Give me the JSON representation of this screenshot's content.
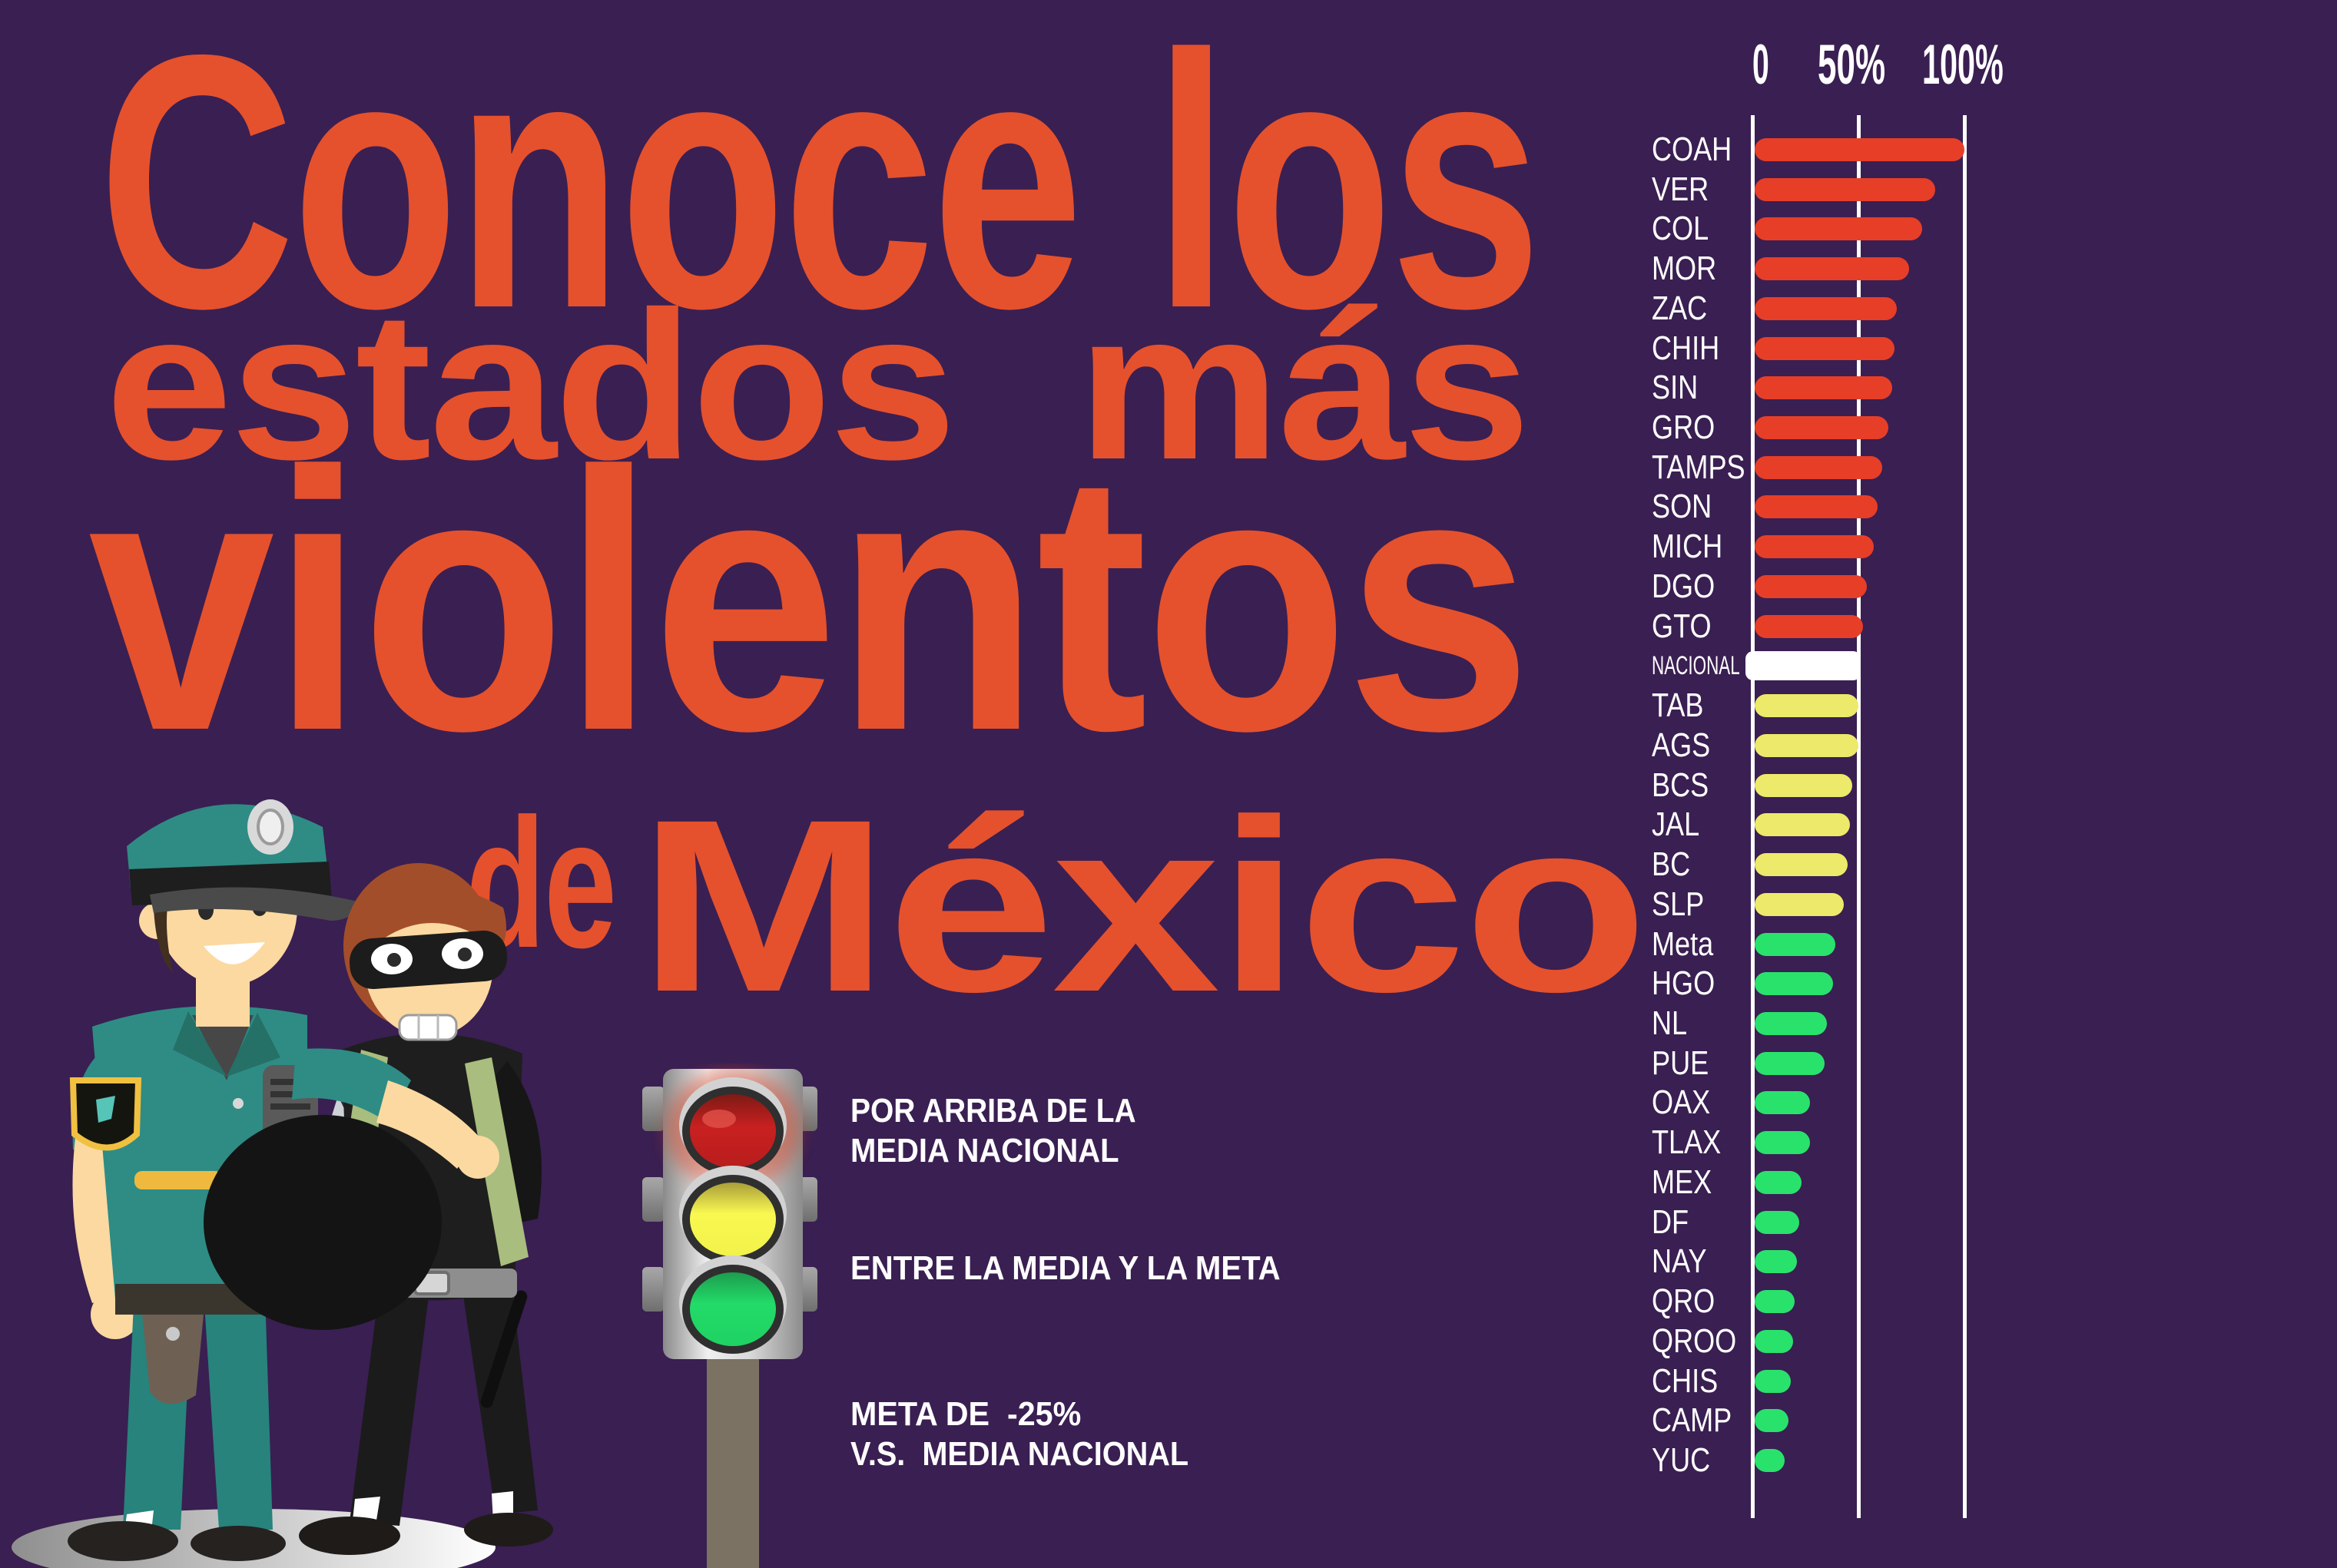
{
  "colors": {
    "background": "#3A1F52",
    "title": "#E5512C",
    "bar_red": "#E73E28",
    "bar_yellow": "#EDE96A",
    "bar_green": "#29E26C",
    "bar_white": "#FFFFFF",
    "text": "#FFFFFF",
    "traffic_red": "#C92020",
    "traffic_yellow": "#F8F851",
    "traffic_green": "#22DB68",
    "pole": "#7B7264"
  },
  "title": {
    "line1": "Conoce los",
    "line2": "estados  más",
    "line3": "violentos",
    "line4_small": "de",
    "line4_large": "México"
  },
  "legend": {
    "items": [
      {
        "light": "red",
        "lines": [
          "POR ARRIBA DE LA",
          "MEDIA NACIONAL"
        ]
      },
      {
        "light": "yellow",
        "lines": [
          "ENTRE LA MEDIA Y LA META"
        ]
      },
      {
        "light": "green",
        "lines": [
          "META DE  -25%",
          "V.S.  MEDIA NACIONAL"
        ]
      }
    ]
  },
  "chart_data": {
    "type": "bar",
    "orientation": "horizontal",
    "x_axis": {
      "ticks": [
        "0",
        "50%",
        "100%"
      ],
      "tick_values": [
        0,
        50,
        100
      ],
      "range": [
        0,
        100
      ],
      "gridlines": true
    },
    "legend_meaning": {
      "red": "above national average",
      "white": "national average",
      "yellow": "between average and goal",
      "green": "goal of -25% vs national average"
    },
    "rows": [
      {
        "label": "COAH",
        "value": 99,
        "color": "red"
      },
      {
        "label": "VER",
        "value": 85,
        "color": "red"
      },
      {
        "label": "COL",
        "value": 79,
        "color": "red"
      },
      {
        "label": "MOR",
        "value": 73,
        "color": "red"
      },
      {
        "label": "ZAC",
        "value": 67,
        "color": "red"
      },
      {
        "label": "CHIH",
        "value": 66,
        "color": "red"
      },
      {
        "label": "SIN",
        "value": 65,
        "color": "red"
      },
      {
        "label": "GRO",
        "value": 63,
        "color": "red"
      },
      {
        "label": "TAMPS",
        "value": 60,
        "color": "red"
      },
      {
        "label": "SON",
        "value": 58,
        "color": "red"
      },
      {
        "label": "MICH",
        "value": 56,
        "color": "red"
      },
      {
        "label": "DGO",
        "value": 53,
        "color": "red"
      },
      {
        "label": "GTO",
        "value": 51,
        "color": "red"
      },
      {
        "label": "NACIONAL",
        "value": 50,
        "color": "white"
      },
      {
        "label": "TAB",
        "value": 49,
        "color": "yellow"
      },
      {
        "label": "AGS",
        "value": 49,
        "color": "yellow"
      },
      {
        "label": "BCS",
        "value": 46,
        "color": "yellow"
      },
      {
        "label": "JAL",
        "value": 45,
        "color": "yellow"
      },
      {
        "label": "BC",
        "value": 44,
        "color": "yellow"
      },
      {
        "label": "SLP",
        "value": 42,
        "color": "yellow"
      },
      {
        "label": "Meta",
        "value": 38,
        "color": "green"
      },
      {
        "label": "HGO",
        "value": 37,
        "color": "green"
      },
      {
        "label": "NL",
        "value": 34,
        "color": "green"
      },
      {
        "label": "PUE",
        "value": 33,
        "color": "green"
      },
      {
        "label": "OAX",
        "value": 26,
        "color": "green"
      },
      {
        "label": "TLAX",
        "value": 26,
        "color": "green"
      },
      {
        "label": "MEX",
        "value": 22,
        "color": "green"
      },
      {
        "label": "DF",
        "value": 21,
        "color": "green"
      },
      {
        "label": "NAY",
        "value": 20,
        "color": "green"
      },
      {
        "label": "QRO",
        "value": 19,
        "color": "green"
      },
      {
        "label": "QROO",
        "value": 18,
        "color": "green"
      },
      {
        "label": "CHIS",
        "value": 17,
        "color": "green"
      },
      {
        "label": "CAMP",
        "value": 16,
        "color": "green"
      },
      {
        "label": "YUC",
        "value": 14,
        "color": "green"
      }
    ]
  }
}
